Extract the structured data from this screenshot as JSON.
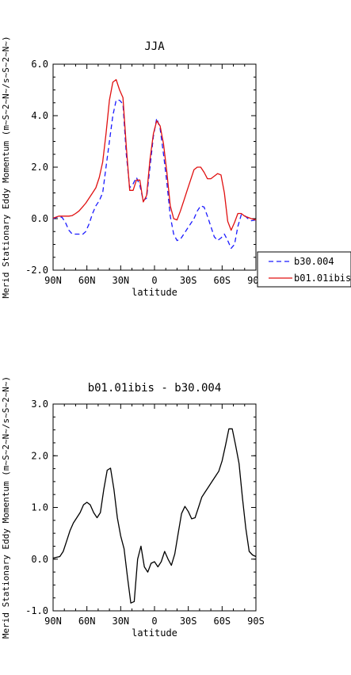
{
  "chart_data": [
    {
      "type": "line",
      "title": "JJA",
      "xlabel": "latitude",
      "ylabel": "Merid Stationary Eddy Momentum (m~S~2~N~/s~S~2~N~)",
      "xlim": [
        90,
        -90
      ],
      "ylim": [
        -2.0,
        6.0
      ],
      "xticks": [
        90,
        60,
        30,
        0,
        -30,
        -60,
        -90
      ],
      "xtick_labels": [
        "90N",
        "60N",
        "30N",
        "0",
        "30S",
        "60S",
        "90S"
      ],
      "yticks": [
        -2.0,
        0.0,
        2.0,
        4.0,
        6.0
      ],
      "ytick_labels": [
        "-2.0",
        "0.0",
        "2.0",
        "4.0",
        "6.0"
      ],
      "grid": false,
      "legend": "right",
      "series": [
        {
          "name": "b30.004",
          "color": "#1a1aff",
          "dash": "dashed",
          "x": [
            90,
            85,
            82,
            79,
            76,
            73,
            70,
            67,
            64,
            61,
            58,
            55,
            52,
            49,
            46,
            43,
            40,
            37,
            34,
            31,
            28,
            25,
            22,
            19,
            16,
            13,
            10,
            7,
            4,
            1,
            -2,
            -5,
            -8,
            -11,
            -14,
            -17,
            -20,
            -23,
            -26,
            -29,
            -32,
            -35,
            -38,
            -41,
            -44,
            -47,
            -50,
            -53,
            -56,
            -59,
            -62,
            -65,
            -68,
            -71,
            -74,
            -77,
            -80,
            -83,
            -86,
            -90
          ],
          "y": [
            0.0,
            0.08,
            0.05,
            -0.15,
            -0.45,
            -0.6,
            -0.6,
            -0.6,
            -0.62,
            -0.5,
            -0.2,
            0.2,
            0.5,
            0.7,
            1.0,
            2.0,
            3.0,
            4.0,
            4.6,
            4.6,
            4.45,
            2.5,
            1.2,
            1.35,
            1.6,
            1.3,
            0.7,
            0.8,
            2.0,
            3.2,
            3.9,
            3.5,
            2.5,
            1.4,
            0.1,
            -0.6,
            -0.85,
            -0.8,
            -0.6,
            -0.4,
            -0.2,
            0.0,
            0.3,
            0.5,
            0.45,
            0.1,
            -0.3,
            -0.7,
            -0.85,
            -0.75,
            -0.6,
            -0.85,
            -1.15,
            -1.0,
            -0.3,
            0.15,
            0.12,
            0.0,
            -0.08,
            -0.05
          ]
        },
        {
          "name": "b01.01ibis",
          "color": "#e01010",
          "dash": "solid",
          "x": [
            90,
            85,
            82,
            79,
            76,
            73,
            70,
            67,
            64,
            61,
            58,
            55,
            52,
            49,
            46,
            43,
            40,
            37,
            34,
            31,
            28,
            25,
            22,
            19,
            16,
            13,
            10,
            7,
            4,
            1,
            -2,
            -5,
            -8,
            -11,
            -14,
            -17,
            -20,
            -23,
            -26,
            -29,
            -32,
            -35,
            -38,
            -41,
            -44,
            -47,
            -50,
            -53,
            -56,
            -59,
            -62,
            -65,
            -68,
            -71,
            -74,
            -77,
            -80,
            -83,
            -86,
            -90
          ],
          "y": [
            0.02,
            0.1,
            0.1,
            0.1,
            0.1,
            0.12,
            0.2,
            0.3,
            0.45,
            0.6,
            0.8,
            1.0,
            1.2,
            1.6,
            2.2,
            3.3,
            4.6,
            5.3,
            5.4,
            5.0,
            4.7,
            2.8,
            1.1,
            1.1,
            1.5,
            1.5,
            0.65,
            0.9,
            2.3,
            3.3,
            3.8,
            3.6,
            2.9,
            1.8,
            0.5,
            0.0,
            -0.05,
            0.3,
            0.7,
            1.1,
            1.5,
            1.9,
            2.0,
            2.0,
            1.8,
            1.55,
            1.55,
            1.65,
            1.75,
            1.7,
            1.0,
            -0.1,
            -0.45,
            -0.15,
            0.2,
            0.2,
            0.1,
            0.05,
            0.0,
            -0.05
          ]
        }
      ]
    },
    {
      "type": "line",
      "title": "b01.01ibis - b30.004",
      "xlabel": "latitude",
      "ylabel": "Merid Stationary Eddy Momentum (m~S~2~N~/s~S~2~N~)",
      "xlim": [
        90,
        -90
      ],
      "ylim": [
        -1.0,
        3.0
      ],
      "xticks": [
        90,
        60,
        30,
        0,
        -30,
        -60,
        -90
      ],
      "xtick_labels": [
        "90N",
        "60N",
        "30N",
        "0",
        "30S",
        "60S",
        "90S"
      ],
      "yticks": [
        -1.0,
        0.0,
        1.0,
        2.0,
        3.0
      ],
      "ytick_labels": [
        "-1.0",
        "0.0",
        "1.0",
        "2.0",
        "3.0"
      ],
      "grid": false,
      "series": [
        {
          "color": "#000000",
          "dash": "solid",
          "x": [
            90,
            84,
            81,
            78,
            75,
            72,
            69,
            66,
            63,
            60,
            57,
            54,
            51,
            48,
            45,
            42,
            39,
            36,
            33,
            30,
            27,
            24,
            21,
            18,
            15,
            12,
            9,
            6,
            3,
            0,
            -3,
            -6,
            -9,
            -12,
            -15,
            -18,
            -21,
            -24,
            -27,
            -30,
            -33,
            -36,
            -39,
            -42,
            -45,
            -48,
            -51,
            -54,
            -57,
            -60,
            -63,
            -66,
            -69,
            -72,
            -75,
            -78,
            -81,
            -84,
            -87,
            -90
          ],
          "y": [
            0.02,
            0.05,
            0.15,
            0.35,
            0.55,
            0.7,
            0.8,
            0.9,
            1.05,
            1.1,
            1.05,
            0.9,
            0.8,
            0.9,
            1.35,
            1.72,
            1.76,
            1.35,
            0.8,
            0.45,
            0.2,
            -0.35,
            -0.85,
            -0.82,
            0.0,
            0.25,
            -0.15,
            -0.25,
            -0.08,
            -0.05,
            -0.15,
            -0.05,
            0.15,
            0.0,
            -0.12,
            0.1,
            0.5,
            0.88,
            1.02,
            0.92,
            0.78,
            0.8,
            1.0,
            1.2,
            1.3,
            1.4,
            1.5,
            1.6,
            1.7,
            1.9,
            2.2,
            2.52,
            2.52,
            2.2,
            1.85,
            1.2,
            0.6,
            0.15,
            0.08,
            0.05
          ]
        }
      ]
    }
  ]
}
